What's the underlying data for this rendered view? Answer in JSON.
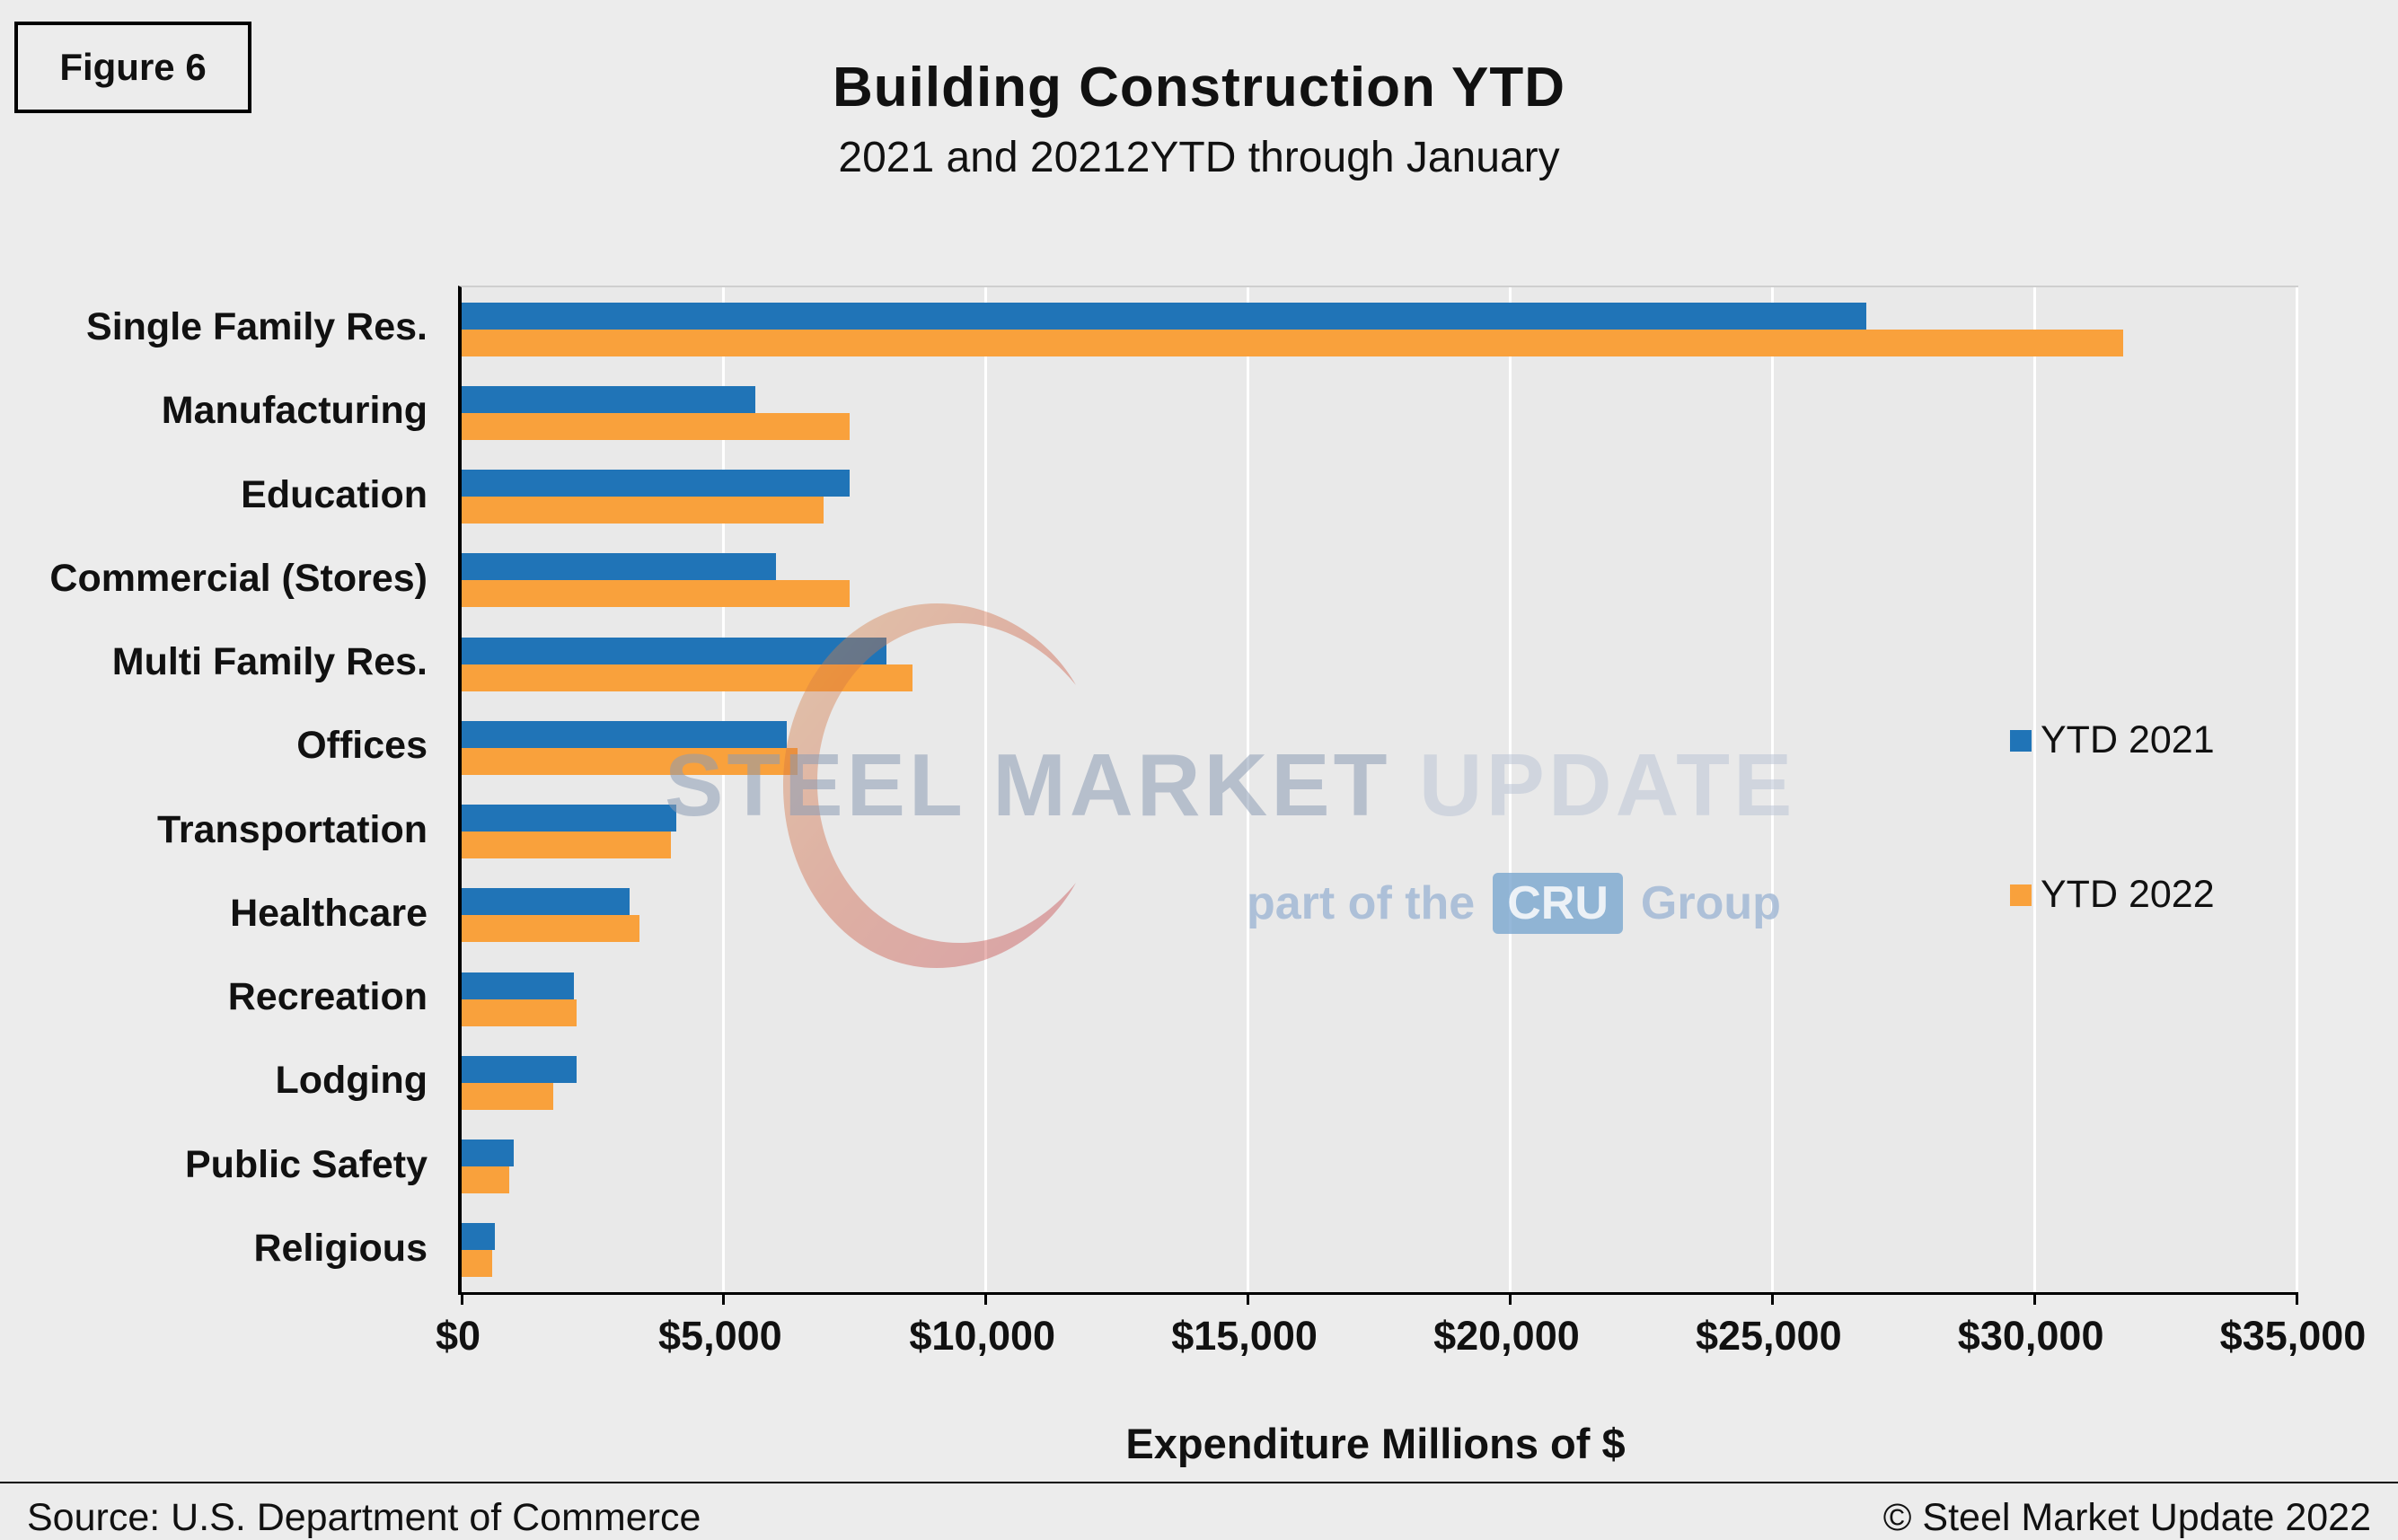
{
  "figure_label": "Figure 6",
  "title": "Building Construction YTD",
  "subtitle": "2021 and 20212YTD through January",
  "footer": {
    "source": "Source: U.S. Department of Commerce",
    "copyright": "© Steel Market Update 2022"
  },
  "watermark": {
    "steel": "STEEL",
    "market": "MARKET",
    "update": "UPDATE",
    "part_of_the": "part of the",
    "cru": "CRU",
    "group": "Group"
  },
  "colors": {
    "ytd_2021": "#2074B7",
    "ytd_2022": "#F9A13C",
    "gridline": "#FFFFFF",
    "axis": "#000000",
    "background": "#ECECEC"
  },
  "chart_data": {
    "type": "bar",
    "orientation": "horizontal",
    "title": "Building Construction YTD",
    "subtitle": "2021 and 20212YTD through January",
    "xlabel": "Expenditure Millions of $",
    "xlim": [
      0,
      35000
    ],
    "xticks": [
      0,
      5000,
      10000,
      15000,
      20000,
      25000,
      30000,
      35000
    ],
    "xtick_labels": [
      "$0",
      "$5,000",
      "$10,000",
      "$15,000",
      "$20,000",
      "$25,000",
      "$30,000",
      "$35,000"
    ],
    "grid": true,
    "legend_position": "right-inside",
    "categories": [
      "Single Family Res.",
      "Manufacturing",
      "Education",
      "Commercial (Stores)",
      "Multi Family Res.",
      "Offices",
      "Transportation",
      "Healthcare",
      "Recreation",
      "Lodging",
      "Public Safety",
      "Religious"
    ],
    "series": [
      {
        "name": "YTD 2021",
        "color": "#2074B7",
        "values": [
          26800,
          5600,
          7400,
          6000,
          8100,
          6200,
          4100,
          3200,
          2150,
          2200,
          1000,
          640
        ]
      },
      {
        "name": "YTD 2022",
        "color": "#F9A13C",
        "values": [
          31700,
          7400,
          6900,
          7400,
          8600,
          6400,
          4000,
          3400,
          2200,
          1750,
          900,
          580
        ]
      }
    ]
  }
}
